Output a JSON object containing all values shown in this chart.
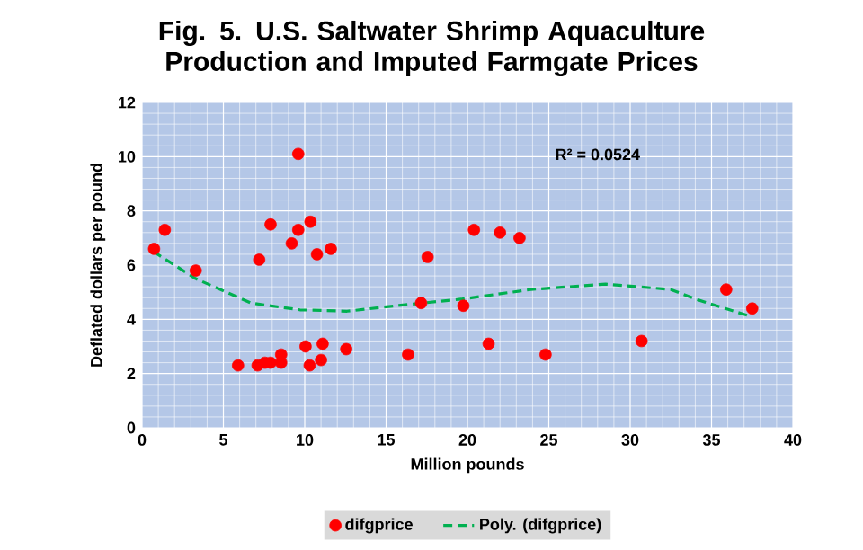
{
  "chart_data": {
    "type": "scatter",
    "title": "Fig. 5. U.S. Saltwater Shrimp Aquaculture Production and Imputed Farmgate Prices",
    "xlabel": "Million pounds",
    "ylabel": "Deflated dollars per pound",
    "xlim": [
      0,
      40
    ],
    "ylim": [
      0,
      12
    ],
    "xticks": [
      0,
      5,
      10,
      15,
      20,
      25,
      30,
      35,
      40
    ],
    "yticks": [
      0,
      2,
      4,
      6,
      8,
      10,
      12
    ],
    "grid": true,
    "legend": "bottom",
    "annotations": [
      "R² = 0.0524"
    ],
    "series": [
      {
        "name": "difgprice",
        "type": "scatter",
        "color": "#ff0000",
        "marker": "circle",
        "x": [
          0.74,
          1.4,
          3.3,
          9.6,
          7.9,
          9.6,
          10.35,
          9.2,
          7.2,
          10.75,
          11.6,
          5.9,
          7.1,
          7.55,
          7.9,
          8.55,
          8.55,
          10.05,
          10.3,
          11.0,
          11.1,
          12.55,
          16.35,
          17.15,
          17.55,
          19.75,
          20.4,
          22.0,
          23.2,
          21.3,
          24.8,
          30.7,
          35.9,
          37.5
        ],
        "values": [
          6.6,
          7.3,
          5.8,
          10.1,
          7.5,
          7.3,
          7.6,
          6.8,
          6.2,
          6.4,
          6.6,
          2.3,
          2.3,
          2.4,
          2.4,
          2.7,
          2.4,
          3.0,
          2.3,
          2.5,
          3.1,
          2.9,
          2.7,
          4.6,
          6.3,
          4.5,
          7.3,
          7.2,
          7.0,
          3.1,
          2.7,
          3.2,
          5.1,
          4.4
        ]
      },
      {
        "name": "Poly. (difgprice)",
        "type": "line",
        "color": "#00b050",
        "marker": "none",
        "line_style": "dashed",
        "x": [
          0.7,
          3.3,
          6.7,
          9.7,
          12.6,
          15.6,
          19.7,
          23.9,
          28.5,
          32.5,
          34.0,
          36.9,
          37.5
        ],
        "values": [
          6.5,
          5.5,
          4.6,
          4.35,
          4.3,
          4.5,
          4.75,
          5.1,
          5.3,
          5.1,
          4.75,
          4.2,
          4.1
        ]
      }
    ]
  }
}
